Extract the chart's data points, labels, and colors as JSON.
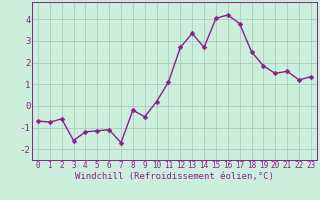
{
  "x": [
    0,
    1,
    2,
    3,
    4,
    5,
    6,
    7,
    8,
    9,
    10,
    11,
    12,
    13,
    14,
    15,
    16,
    17,
    18,
    19,
    20,
    21,
    22,
    23
  ],
  "y": [
    -0.7,
    -0.75,
    -0.6,
    -1.6,
    -1.2,
    -1.15,
    -1.1,
    -1.7,
    -0.2,
    -0.5,
    0.2,
    1.1,
    2.7,
    3.35,
    2.7,
    4.05,
    4.2,
    3.8,
    2.5,
    1.85,
    1.5,
    1.6,
    1.2,
    1.35
  ],
  "line_color": "#882288",
  "marker": "D",
  "marker_size": 2.5,
  "linewidth": 1.0,
  "bg_color": "#cceedd",
  "grid_color": "#aaccbb",
  "xlabel": "Windchill (Refroidissement éolien,°C)",
  "xlabel_color": "#882288",
  "xlabel_fontsize": 6.5,
  "tick_color": "#882288",
  "tick_fontsize": 5.5,
  "ytick_fontsize": 6.5,
  "ylim": [
    -2.5,
    4.8
  ],
  "xlim": [
    -0.5,
    23.5
  ],
  "yticks": [
    -2,
    -1,
    0,
    1,
    2,
    3,
    4
  ],
  "xticks": [
    0,
    1,
    2,
    3,
    4,
    5,
    6,
    7,
    8,
    9,
    10,
    11,
    12,
    13,
    14,
    15,
    16,
    17,
    18,
    19,
    20,
    21,
    22,
    23
  ]
}
